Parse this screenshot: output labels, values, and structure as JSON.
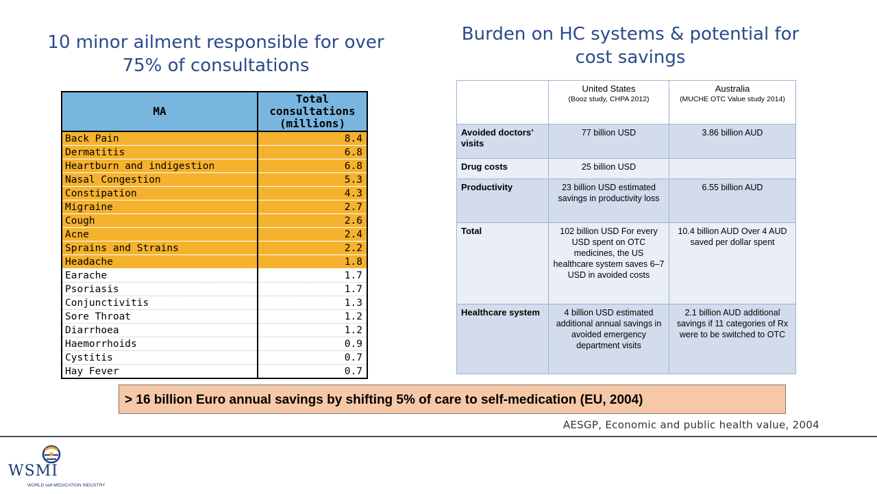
{
  "left_title": "10 minor ailment responsible for over 75% of consultations",
  "right_title": "Burden on HC systems & potential for cost savings",
  "ma_table": {
    "header_ma": "MA",
    "header_total": "Total consultations (millions)",
    "rows": [
      {
        "name": "Back Pain",
        "value": "8.4",
        "highlight": true
      },
      {
        "name": "Dermatitis",
        "value": "6.8",
        "highlight": true
      },
      {
        "name": "Heartburn and indigestion",
        "value": "6.8",
        "highlight": true
      },
      {
        "name": "Nasal Congestion",
        "value": "5.3",
        "highlight": true
      },
      {
        "name": "Constipation",
        "value": "4.3",
        "highlight": true
      },
      {
        "name": "Migraine",
        "value": "2.7",
        "highlight": true
      },
      {
        "name": "Cough",
        "value": "2.6",
        "highlight": true
      },
      {
        "name": "Acne",
        "value": "2.4",
        "highlight": true
      },
      {
        "name": "Sprains and Strains",
        "value": "2.2",
        "highlight": true
      },
      {
        "name": "Headache",
        "value": "1.8",
        "highlight": true
      },
      {
        "name": "Earache",
        "value": "1.7",
        "highlight": false
      },
      {
        "name": "Psoriasis",
        "value": "1.7",
        "highlight": false
      },
      {
        "name": "Conjunctivitis",
        "value": "1.3",
        "highlight": false
      },
      {
        "name": "Sore Throat",
        "value": "1.2",
        "highlight": false
      },
      {
        "name": "Diarrhoea",
        "value": "1.2",
        "highlight": false
      },
      {
        "name": "Haemorrhoids",
        "value": "0.9",
        "highlight": false
      },
      {
        "name": "Cystitis",
        "value": "0.7",
        "highlight": false
      },
      {
        "name": "Hay Fever",
        "value": "0.7",
        "highlight": false
      }
    ]
  },
  "cost_table": {
    "col_us": "United States",
    "col_us_sub": "(Booz study, CHPA 2012)",
    "col_au": "Australia",
    "col_au_sub": "(MUCHE OTC Value study 2014)",
    "rows": [
      {
        "label": "Avoided doctors’ visits",
        "us": "77 billion USD",
        "au": "3.86 billion AUD"
      },
      {
        "label": "Drug costs",
        "us": "25 billion USD",
        "au": ""
      },
      {
        "label": "Productivity",
        "us": "23 billion USD estimated savings in productivity loss",
        "au": "6.55 billion AUD"
      },
      {
        "label": "Total",
        "us": "102 billion USD For every USD spent on OTC medicines, the US healthcare system saves 6–7 USD in avoided costs",
        "au": "10.4 billion AUD Over 4 AUD saved per dollar spent"
      },
      {
        "label": "Healthcare system",
        "us": "4 billion USD estimated additional annual savings in avoided emergency department visits",
        "au": "2.1 billion AUD additional savings if 11 categories of Rx were to be switched to OTC"
      }
    ]
  },
  "banner_text": "> 16 billion Euro annual savings by shifting 5% of care to self-medication (EU, 2004)",
  "source_text": "AESGP, Economic and public health value, 2004",
  "logo": {
    "name": "WSMI",
    "tagline": "WORLD self-MEDICATION INDUSTRY",
    "colors": {
      "blue": "#1c3a78",
      "orange": "#f0a030"
    }
  }
}
